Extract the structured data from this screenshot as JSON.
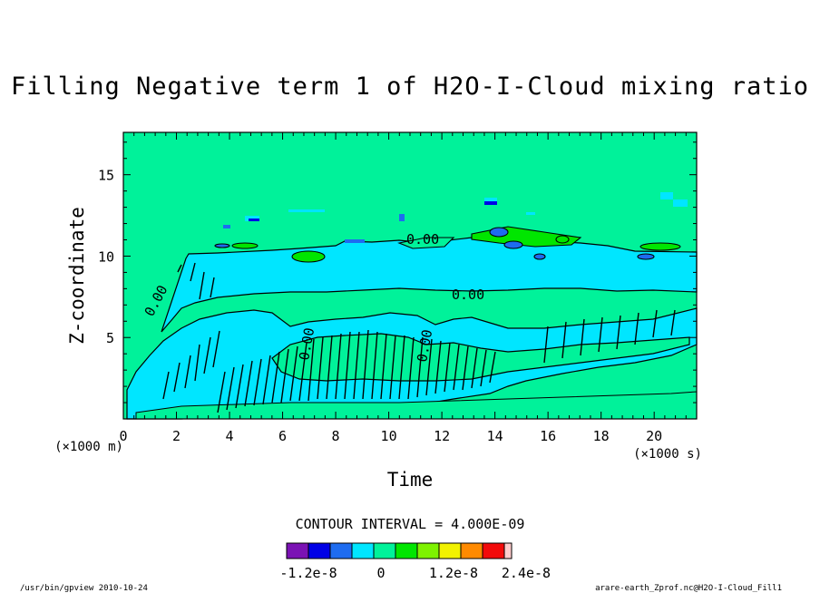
{
  "chart_data": {
    "type": "contour",
    "title": "Filling Negative term 1 of H2O-I-Cloud mixing ratio",
    "xlabel": "Time",
    "ylabel": "Z-coordinate",
    "x_unit": "(×1000 s)",
    "y_unit": "(×1000 m)",
    "xlim": [
      0,
      21.6
    ],
    "ylim": [
      0,
      17.6
    ],
    "x_ticks": [
      "0",
      "2",
      "4",
      "6",
      "8",
      "10",
      "12",
      "14",
      "16",
      "18",
      "20"
    ],
    "y_ticks": [
      "5",
      "10",
      "15"
    ],
    "contour_interval_text": "CONTOUR INTERVAL = 4.000E-09",
    "contour_labels": [
      "0.00",
      "0.00",
      "0.00",
      "0.00",
      "0.00"
    ],
    "colorbar": {
      "colors": [
        "#7b12b4",
        "#0000e6",
        "#1e6cf0",
        "#00e6ff",
        "#00f29a",
        "#00e600",
        "#7ef200",
        "#f2f200",
        "#ff8a00",
        "#f20a0a",
        "#ffcccc"
      ],
      "tick_labels": [
        "-1.2e-8",
        "0",
        "1.2e-8",
        "2.4e-8"
      ]
    },
    "regions": [
      {
        "level": "cyan",
        "color": "#00e6ff",
        "note": "band z 8.5-10.5 (x1000 m) from t 2.5 onward"
      },
      {
        "level": "cyan",
        "color": "#00e6ff",
        "note": "lower region z 0.5-7"
      },
      {
        "level": "blue",
        "color": "#1e6cf0",
        "note": "patches near z 11-12, t 13-16"
      },
      {
        "level": "green",
        "color": "#00e600",
        "note": "small patches near z 11-12"
      }
    ]
  },
  "footer": {
    "left": "/usr/bin/gpview  2010-10-24",
    "right": "arare-earth_Zprof.nc@H2O-I-Cloud_Fill1"
  }
}
